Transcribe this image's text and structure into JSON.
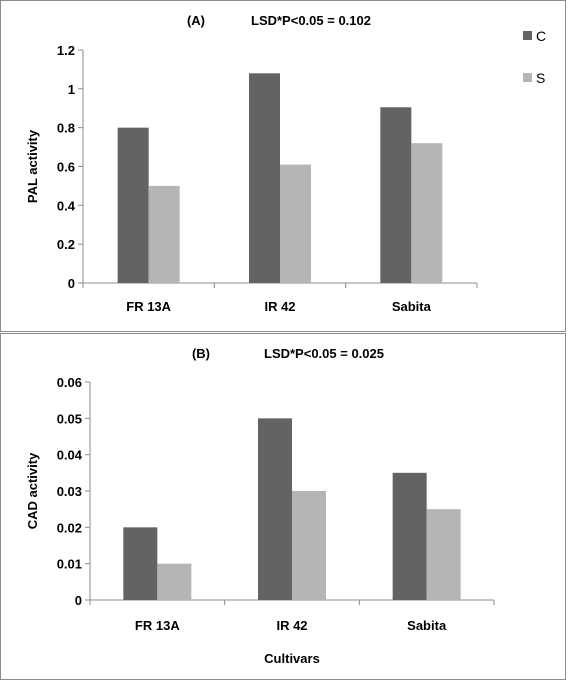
{
  "chart_data": [
    {
      "type": "bar",
      "title_prefix": "(A)",
      "title": "LSD*P<0.05 = 0.102",
      "xlabel": "",
      "ylabel": "PAL activity",
      "categories": [
        "FR 13A",
        "IR 42",
        "Sabita"
      ],
      "series": [
        {
          "name": "C",
          "color": "#636363",
          "values": [
            0.8,
            1.08,
            0.905
          ]
        },
        {
          "name": "S",
          "color": "#b5b5b5",
          "values": [
            0.5,
            0.61,
            0.72
          ]
        }
      ],
      "ylim": [
        0,
        1.2
      ],
      "yticks": [
        "0",
        "0.2",
        "0.4",
        "0.6",
        "0.8",
        "1",
        "1.2"
      ],
      "ytick_values": [
        0,
        0.2,
        0.4,
        0.6,
        0.8,
        1,
        1.2
      ],
      "legend": "top-right",
      "grid": false
    },
    {
      "type": "bar",
      "title_prefix": "(B)",
      "title": "LSD*P<0.05 = 0.025",
      "xlabel": "Cultivars",
      "ylabel": "CAD activity",
      "categories": [
        "FR 13A",
        "IR 42",
        "Sabita"
      ],
      "series": [
        {
          "name": "C",
          "color": "#636363",
          "values": [
            0.02,
            0.05,
            0.035
          ]
        },
        {
          "name": "S",
          "color": "#b5b5b5",
          "values": [
            0.01,
            0.03,
            0.025
          ]
        }
      ],
      "ylim": [
        0,
        0.06
      ],
      "yticks": [
        "0",
        "0.01",
        "0.02",
        "0.03",
        "0.04",
        "0.05",
        "0.06"
      ],
      "ytick_values": [
        0,
        0.01,
        0.02,
        0.03,
        0.04,
        0.05,
        0.06
      ],
      "grid": false
    }
  ]
}
